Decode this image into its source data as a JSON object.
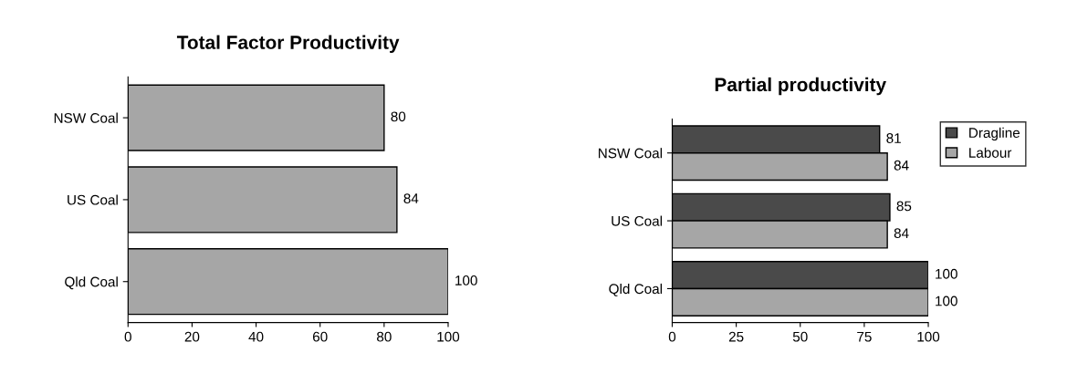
{
  "chart_data": [
    {
      "type": "bar",
      "orientation": "horizontal",
      "title": "Total Factor Productivity",
      "categories": [
        "NSW Coal",
        "US Coal",
        "Qld Coal"
      ],
      "series": [
        {
          "color": "#a6a6a6",
          "values": [
            80,
            84,
            100
          ]
        }
      ],
      "xlim": [
        0,
        100
      ],
      "xticks": [
        0,
        20,
        40,
        60,
        80,
        100
      ],
      "data_labels": true,
      "grid": false,
      "legend": false
    },
    {
      "type": "bar",
      "orientation": "horizontal",
      "title": "Partial productivity",
      "categories": [
        "NSW Coal",
        "US Coal",
        "Qld Coal"
      ],
      "series": [
        {
          "name": "Dragline",
          "color": "#4a4a4a",
          "values": [
            81,
            85,
            100
          ]
        },
        {
          "name": "Labour",
          "color": "#a6a6a6",
          "values": [
            84,
            84,
            100
          ]
        }
      ],
      "xlim": [
        0,
        100
      ],
      "xticks": [
        0,
        25,
        50,
        75,
        100
      ],
      "data_labels": true,
      "grid": false,
      "legend": "top right"
    }
  ]
}
